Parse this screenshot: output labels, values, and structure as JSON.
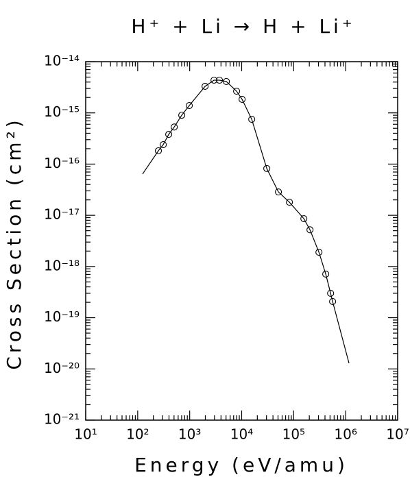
{
  "chart_data": {
    "type": "scatter",
    "title": "H⁺ + Li → H + Li⁺",
    "x_label": "Energy (eV/amu)",
    "y_label": "Cross Section (cm²)",
    "x_log": true,
    "y_log": true,
    "xlim": [
      10,
      10000000
    ],
    "ylim": [
      1e-21,
      1e-14
    ],
    "xticks": [
      {
        "value": 10,
        "label": "10¹"
      },
      {
        "value": 100,
        "label": "10²"
      },
      {
        "value": 1000,
        "label": "10³"
      },
      {
        "value": 10000,
        "label": "10⁴"
      },
      {
        "value": 100000,
        "label": "10⁵"
      },
      {
        "value": 1000000,
        "label": "10⁶"
      },
      {
        "value": 10000000,
        "label": "10⁷"
      }
    ],
    "yticks": [
      {
        "value": 1e-21,
        "label": "10⁻²¹"
      },
      {
        "value": 1e-20,
        "label": "10⁻²⁰"
      },
      {
        "value": 1e-19,
        "label": "10⁻¹⁹"
      },
      {
        "value": 1e-18,
        "label": "10⁻¹⁸"
      },
      {
        "value": 1e-17,
        "label": "10⁻¹⁷"
      },
      {
        "value": 1e-16,
        "label": "10⁻¹⁶"
      },
      {
        "value": 1e-15,
        "label": "10⁻¹⁵"
      },
      {
        "value": 1e-14,
        "label": "10⁻¹⁴"
      }
    ],
    "series": [
      {
        "marker": "circle",
        "color": "#000000",
        "x": [
          250,
          310,
          395,
          504,
          703,
          982,
          1976,
          2934,
          3740,
          5070,
          7980,
          10180,
          15600,
          30400,
          50900,
          82800,
          157000,
          206000,
          306000,
          414000,
          513000,
          561000
        ],
        "values": [
          1.82e-16,
          2.4e-16,
          3.8e-16,
          5.3e-16,
          9e-16,
          1.39e-15,
          3.3e-15,
          4.35e-15,
          4.35e-15,
          4.1e-15,
          2.65e-15,
          1.84e-15,
          7.5e-16,
          8.2e-17,
          2.86e-17,
          1.8e-17,
          8.6e-18,
          5.2e-18,
          1.9e-18,
          7.1e-19,
          3e-19,
          2.07e-19
        ]
      },
      {
        "marker": "line",
        "color": "#000000",
        "x": [
          124,
          250,
          310,
          395,
          504,
          703,
          982,
          1976,
          2934,
          3740,
          5070,
          7980,
          10180,
          15600,
          30400,
          50900,
          82800,
          157000,
          206000,
          306000,
          414000,
          513000,
          561000,
          1160000
        ],
        "values": [
          6.4e-17,
          1.82e-16,
          2.4e-16,
          3.8e-16,
          5.3e-16,
          9e-16,
          1.39e-15,
          3.3e-15,
          4.35e-15,
          4.35e-15,
          4.1e-15,
          2.65e-15,
          1.84e-15,
          7.5e-16,
          8.2e-17,
          2.86e-17,
          1.8e-17,
          8.6e-18,
          5.2e-18,
          1.9e-18,
          7.1e-19,
          3e-19,
          2.07e-19,
          1.29e-20
        ]
      }
    ]
  }
}
